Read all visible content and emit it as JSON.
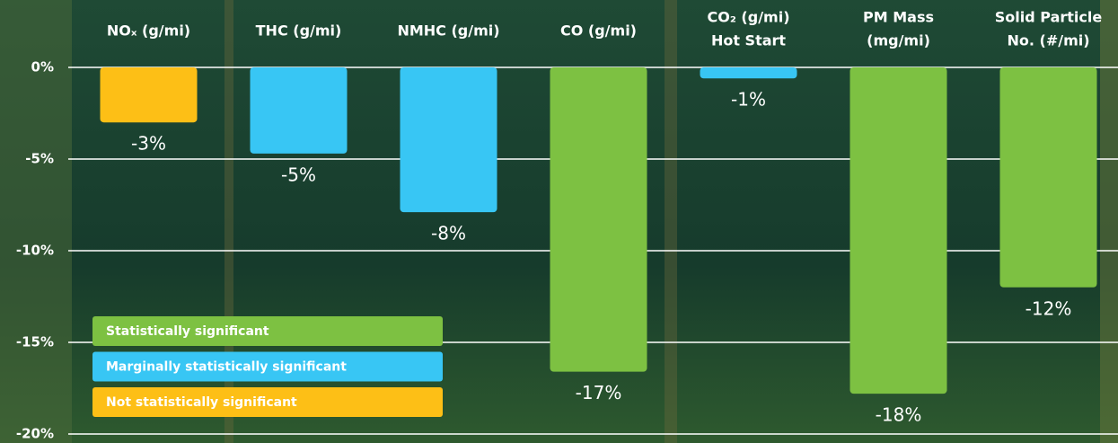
{
  "chart_data": {
    "type": "bar",
    "categories": [
      [
        "NOₓ (g/mi)"
      ],
      [
        "THC (g/mi)"
      ],
      [
        "NMHC (g/mi)"
      ],
      [
        "CO (g/mi)"
      ],
      [
        "CO₂ (g/mi)",
        "Hot Start"
      ],
      [
        "PM Mass",
        "(mg/mi)"
      ],
      [
        "Solid Particle",
        "No. (#/mi)"
      ]
    ],
    "values": [
      -3.0,
      -4.7,
      -7.9,
      -16.6,
      -0.6,
      -17.8,
      -12.0
    ],
    "value_labels": [
      "-3%",
      "-5%",
      "-8%",
      "-17%",
      "-1%",
      "-18%",
      "-12%"
    ],
    "colors": [
      "#fdbf16",
      "#38c6f4",
      "#38c6f4",
      "#7dc142",
      "#38c6f4",
      "#7dc142",
      "#7dc142"
    ],
    "ylim": [
      -20,
      0
    ],
    "yticks": [
      {
        "value": 0,
        "label": "0%"
      },
      {
        "value": -5,
        "label": "-5%"
      },
      {
        "value": -10,
        "label": "-10%"
      },
      {
        "value": -15,
        "label": "-15%"
      },
      {
        "value": -20,
        "label": "-20%"
      }
    ],
    "grid": true,
    "legend": [
      {
        "label": "Statistically significant",
        "color": "#7dc142"
      },
      {
        "label": "Marginally statistically significant",
        "color": "#38c6f4"
      },
      {
        "label": "Not statistically significant",
        "color": "#fdbf16"
      }
    ]
  }
}
